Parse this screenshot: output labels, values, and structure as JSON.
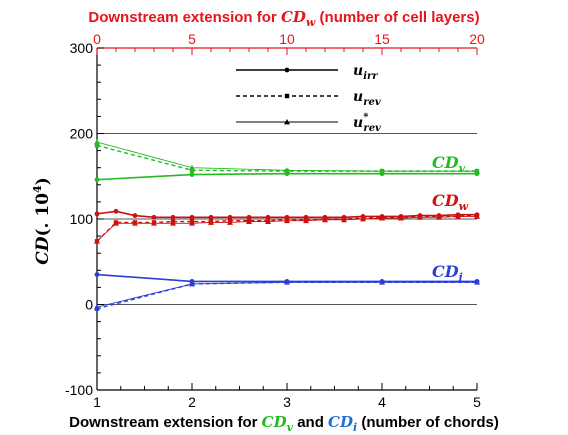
{
  "chart_data": {
    "type": "line",
    "title_top": {
      "prefix": "Downstream extension for ",
      "sym": "CD",
      "sub": "w",
      "suffix": " (number of cell layers)",
      "color": "#e8141c"
    },
    "xlabel": {
      "prefix": "Downstream extension for ",
      "sym1": "CD",
      "sub1": "v",
      "mid": " and ",
      "sym2": "CD",
      "sub2": "i",
      "suffix": " (number of chords)"
    },
    "ylabel": {
      "main": "CD",
      "suffix": "(. 10",
      "exp": "4",
      "close": ")"
    },
    "x_bottom": {
      "range": [
        1,
        5
      ],
      "ticks": [
        "1",
        "2",
        "3",
        "4",
        "5"
      ]
    },
    "x_top": {
      "range": [
        0,
        20
      ],
      "ticks": [
        "0",
        "5",
        "10",
        "15",
        "20"
      ]
    },
    "y": {
      "range": [
        -100,
        300
      ],
      "ticks": [
        "-100",
        "0",
        "100",
        "200",
        "300"
      ]
    },
    "gridlines_y": [
      0,
      100,
      200
    ],
    "legend": [
      {
        "label": "u",
        "sub": "irr",
        "sup": "",
        "style": "solid",
        "marker": "circle"
      },
      {
        "label": "u",
        "sub": "rev",
        "sup": "",
        "style": "dashed",
        "marker": "square"
      },
      {
        "label": "u",
        "sub": "rev",
        "sup": "*",
        "style": "thin",
        "marker": "triangle"
      }
    ],
    "colors": {
      "CDv": "#22bb22",
      "CDw": "#cc1111",
      "CDi": "#2a3fd8"
    },
    "annotations": [
      {
        "sym": "CD",
        "sub": "v",
        "color": "#22bb22"
      },
      {
        "sym": "CD",
        "sub": "w",
        "color": "#cc1111"
      },
      {
        "sym": "CD",
        "sub": "i",
        "color": "#2a3fd8"
      }
    ],
    "series": [
      {
        "group": "CDv",
        "axis": "bottom",
        "style": "solid",
        "marker": "circle",
        "x": [
          1,
          2,
          3,
          4,
          5
        ],
        "y": [
          146,
          152,
          153,
          153,
          153
        ]
      },
      {
        "group": "CDv",
        "axis": "bottom",
        "style": "dashed",
        "marker": "square",
        "x": [
          1,
          2,
          3,
          4,
          5
        ],
        "y": [
          186,
          157,
          156,
          156,
          156
        ]
      },
      {
        "group": "CDv",
        "axis": "bottom",
        "style": "thin",
        "marker": "triangle",
        "x": [
          1,
          2,
          3,
          4,
          5
        ],
        "y": [
          190,
          160,
          157,
          156,
          156
        ]
      },
      {
        "group": "CDw",
        "axis": "top",
        "style": "solid",
        "marker": "circle",
        "x": [
          0,
          1,
          2,
          3,
          4,
          5,
          6,
          7,
          8,
          9,
          10,
          11,
          12,
          13,
          14,
          15,
          16,
          17,
          18,
          19,
          20
        ],
        "y": [
          106,
          109,
          104,
          102,
          102,
          102,
          102,
          102,
          102,
          102,
          102,
          102,
          102,
          102,
          103,
          103,
          103,
          104,
          104,
          105,
          105
        ]
      },
      {
        "group": "CDw",
        "axis": "top",
        "style": "dashed",
        "marker": "square",
        "x": [
          0,
          1,
          2,
          3,
          4,
          5,
          6,
          7,
          8,
          9,
          10,
          11,
          12,
          13,
          14,
          15,
          16,
          17,
          18,
          19,
          20
        ],
        "y": [
          74,
          96,
          96,
          96,
          97,
          97,
          97,
          98,
          98,
          98,
          99,
          99,
          100,
          100,
          101,
          102,
          102,
          103,
          103,
          103,
          104
        ]
      },
      {
        "group": "CDw",
        "axis": "top",
        "style": "thin",
        "marker": "triangle",
        "x": [
          0,
          1,
          2,
          3,
          4,
          5,
          6,
          7,
          8,
          9,
          10,
          11,
          12,
          13,
          14,
          15,
          16,
          17,
          18,
          19,
          20
        ],
        "y": [
          74,
          95,
          95,
          95,
          95,
          95,
          96,
          96,
          97,
          97,
          98,
          98,
          99,
          99,
          100,
          101,
          101,
          102,
          102,
          103,
          103
        ]
      },
      {
        "group": "CDi",
        "axis": "bottom",
        "style": "solid",
        "marker": "circle",
        "x": [
          1,
          2,
          3,
          4,
          5
        ],
        "y": [
          35,
          27,
          27,
          27,
          27
        ]
      },
      {
        "group": "CDi",
        "axis": "bottom",
        "style": "dashed",
        "marker": "square",
        "x": [
          1,
          2,
          3,
          4,
          5
        ],
        "y": [
          -5,
          24,
          26,
          26,
          26
        ]
      },
      {
        "group": "CDi",
        "axis": "bottom",
        "style": "thin",
        "marker": "triangle",
        "x": [
          1,
          2,
          3,
          4,
          5
        ],
        "y": [
          -3,
          24,
          26,
          26,
          26
        ]
      }
    ]
  }
}
